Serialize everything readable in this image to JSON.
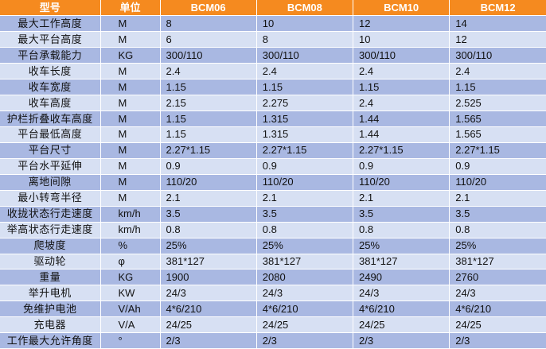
{
  "colors": {
    "header_bg": "#F58A1F",
    "header_text": "#FFFFFF",
    "row_odd": "#A9B8E2",
    "row_even": "#D7E0F3"
  },
  "headers": [
    "型号",
    "单位",
    "BCM06",
    "BCM08",
    "BCM10",
    "BCM12"
  ],
  "rows": [
    {
      "param": "最大工作高度",
      "unit": "M",
      "values": [
        "8",
        "10",
        "12",
        "14"
      ]
    },
    {
      "param": "最大平台高度",
      "unit": "M",
      "values": [
        "6",
        "8",
        "10",
        "12"
      ]
    },
    {
      "param": "平台承载能力",
      "unit": "KG",
      "values": [
        "300/110",
        "300/110",
        "300/110",
        "300/110"
      ]
    },
    {
      "param": "收车长度",
      "unit": "M",
      "values": [
        "2.4",
        "2.4",
        "2.4",
        "2.4"
      ]
    },
    {
      "param": "收车宽度",
      "unit": "M",
      "values": [
        "1.15",
        "1.15",
        "1.15",
        "1.15"
      ]
    },
    {
      "param": "收车高度",
      "unit": "M",
      "values": [
        "2.15",
        "2.275",
        "2.4",
        "2.525"
      ]
    },
    {
      "param": "护栏折叠收车高度",
      "unit": "M",
      "values": [
        "1.15",
        "1.315",
        "1.44",
        "1.565"
      ]
    },
    {
      "param": "平台最低高度",
      "unit": "M",
      "values": [
        "1.15",
        "1.315",
        "1.44",
        "1.565"
      ]
    },
    {
      "param": "平台尺寸",
      "unit": "M",
      "values": [
        "2.27*1.15",
        "2.27*1.15",
        "2.27*1.15",
        "2.27*1.15"
      ]
    },
    {
      "param": "平台水平延伸",
      "unit": "M",
      "values": [
        "0.9",
        "0.9",
        "0.9",
        "0.9"
      ]
    },
    {
      "param": "离地间隙",
      "unit": "M",
      "values": [
        "110/20",
        "110/20",
        "110/20",
        "110/20"
      ]
    },
    {
      "param": "最小转弯半径",
      "unit": "M",
      "values": [
        "2.1",
        "2.1",
        "2.1",
        "2.1"
      ]
    },
    {
      "param": "收拢状态行走速度",
      "unit": "km/h",
      "values": [
        "3.5",
        "3.5",
        "3.5",
        "3.5"
      ]
    },
    {
      "param": "举高状态行走速度",
      "unit": "km/h",
      "values": [
        "0.8",
        "0.8",
        "0.8",
        "0.8"
      ]
    },
    {
      "param": "爬坡度",
      "unit": "%",
      "values": [
        "25%",
        "25%",
        "25%",
        "25%"
      ]
    },
    {
      "param": "驱动轮",
      "unit": "φ",
      "values": [
        "381*127",
        "381*127",
        "381*127",
        "381*127"
      ]
    },
    {
      "param": "重量",
      "unit": "KG",
      "values": [
        "1900",
        "2080",
        "2490",
        "2760"
      ]
    },
    {
      "param": "举升电机",
      "unit": "KW",
      "values": [
        "24/3",
        "24/3",
        "24/3",
        "24/3"
      ]
    },
    {
      "param": "免维护电池",
      "unit": "V/Ah",
      "values": [
        "4*6/210",
        "4*6/210",
        "4*6/210",
        "4*6/210"
      ]
    },
    {
      "param": "充电器",
      "unit": "V/A",
      "values": [
        "24/25",
        "24/25",
        "24/25",
        "24/25"
      ]
    },
    {
      "param": "工作最大允许角度",
      "unit": "°",
      "values": [
        "2/3",
        "2/3",
        "2/3",
        "2/3"
      ]
    }
  ]
}
